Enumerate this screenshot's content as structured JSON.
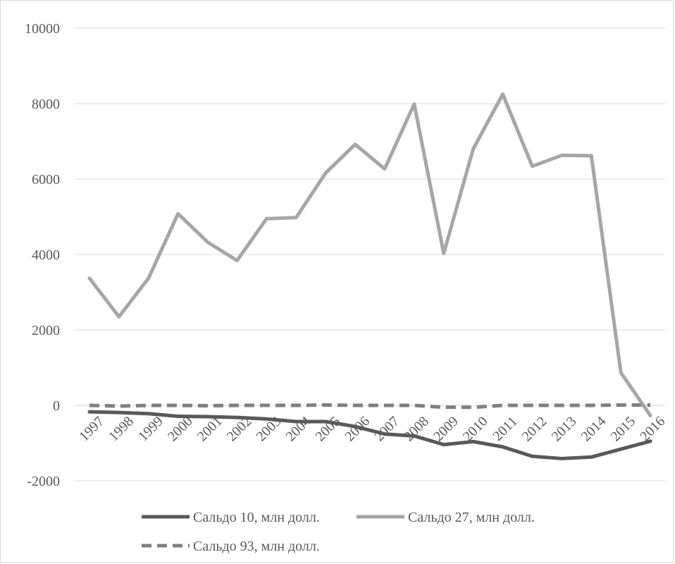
{
  "chart_data": {
    "type": "line",
    "title": "",
    "xlabel": "",
    "ylabel": "",
    "ylim": [
      -2000,
      10000
    ],
    "yticks": [
      -2000,
      0,
      2000,
      4000,
      6000,
      8000,
      10000
    ],
    "grid": "horizontal",
    "legend_position": "bottom",
    "categories": [
      "1997",
      "1998",
      "1999",
      "2000",
      "2001",
      "2002",
      "2003",
      "2004",
      "2005",
      "2006",
      "2007",
      "2008",
      "2009",
      "2010",
      "2011",
      "2012",
      "2013",
      "2014",
      "2015",
      "2016"
    ],
    "series": [
      {
        "name": "Сальдо 10, млн долл.",
        "color": "#595959",
        "dash": "solid",
        "values": [
          -170,
          -190,
          -220,
          -290,
          -300,
          -320,
          -360,
          -430,
          -430,
          -560,
          -760,
          -810,
          -1040,
          -960,
          -1100,
          -1350,
          -1410,
          -1370,
          -1160,
          -950
        ]
      },
      {
        "name": "Сальдо 27, млн долл.",
        "color": "#a6a6a6",
        "dash": "solid",
        "values": [
          3370,
          2350,
          3370,
          5080,
          4330,
          3840,
          4950,
          4980,
          6160,
          6920,
          6270,
          7990,
          4030,
          6800,
          8250,
          6340,
          6630,
          6620,
          870,
          -270
        ]
      },
      {
        "name": "Сальдо 93, млн долл.",
        "color": "#7f7f7f",
        "dash": "dashed",
        "values": [
          0,
          -20,
          0,
          0,
          -10,
          0,
          0,
          0,
          10,
          0,
          0,
          0,
          -50,
          -50,
          0,
          0,
          0,
          0,
          10,
          10
        ]
      }
    ]
  }
}
